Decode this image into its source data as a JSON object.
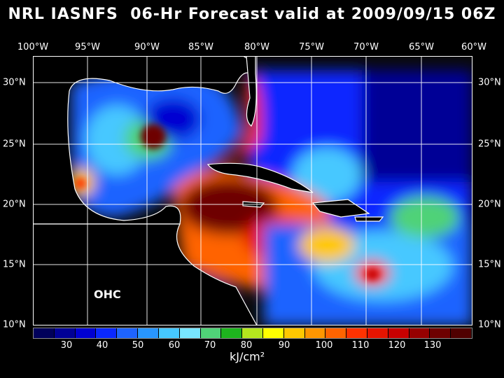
{
  "title": "NRL IASNFS  06-Hr Forecast valid at 2009/09/15 06Z",
  "field_label": "OHC",
  "units": "kJ/cm²",
  "lon_labels": [
    "100°W",
    "95°W",
    "90°W",
    "85°W",
    "80°W",
    "75°W",
    "70°W",
    "65°W",
    "60°W"
  ],
  "lat_labels": [
    "30°N",
    "25°N",
    "20°N",
    "15°N",
    "10°N"
  ],
  "colorbar": {
    "labels": [
      "30",
      "40",
      "50",
      "60",
      "70",
      "80",
      "90",
      "100",
      "110",
      "120",
      "130"
    ],
    "colors": [
      "#00005a",
      "#000096",
      "#0000d2",
      "#0a28ff",
      "#1e64ff",
      "#2896ff",
      "#46c8ff",
      "#78e6ff",
      "#50d278",
      "#1eb41e",
      "#b4e61e",
      "#ffff00",
      "#ffc800",
      "#ff9600",
      "#ff6400",
      "#ff3200",
      "#e61400",
      "#c80000",
      "#960000",
      "#6e0000",
      "#500000"
    ]
  },
  "colors": {
    "land": "#000000",
    "coast": "#ffffff",
    "grid": "#ffffff"
  }
}
